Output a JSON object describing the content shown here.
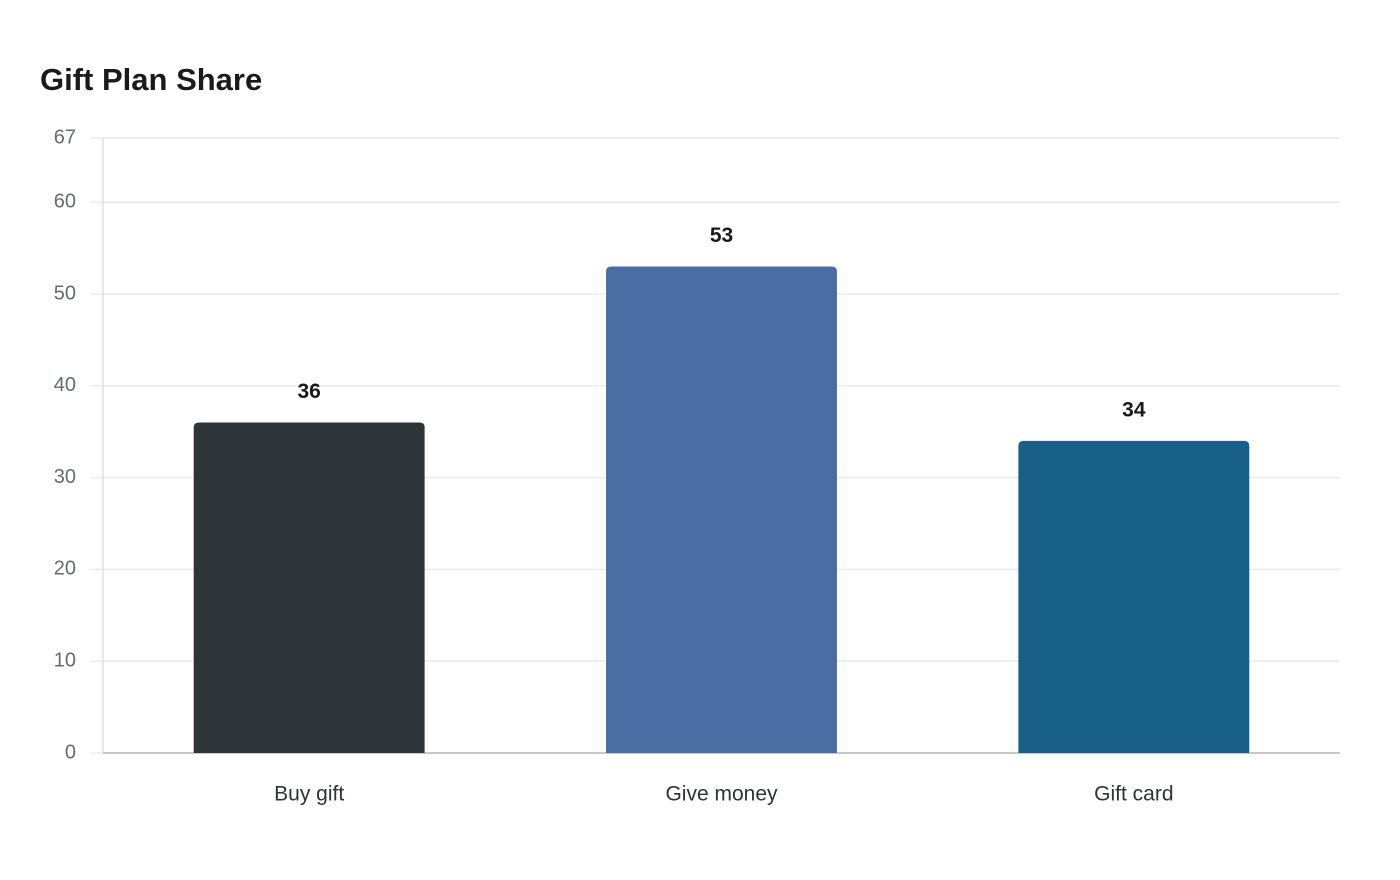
{
  "chart_data": {
    "type": "bar",
    "title": "Gift Plan Share",
    "categories": [
      "Buy gift",
      "Give money",
      "Gift card"
    ],
    "values": [
      36,
      53,
      34
    ],
    "colors": [
      "#2e3538",
      "#4a6ea3",
      "#186088"
    ],
    "ylim": [
      0,
      67
    ],
    "yticks": [
      0,
      10,
      20,
      30,
      40,
      50,
      60,
      67
    ],
    "grid": true
  }
}
